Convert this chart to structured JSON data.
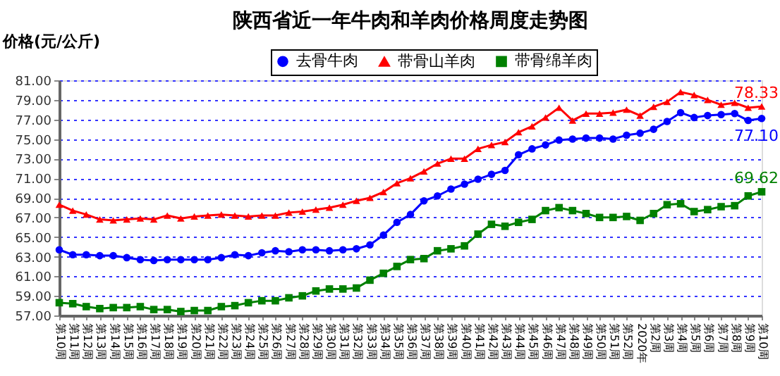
{
  "chart_data": {
    "type": "line",
    "title": "陕西省近一年牛肉和羊肉价格周度走势图",
    "ylabel": "价格(元/公斤)",
    "categories": [
      "第10周",
      "第11周",
      "第12周",
      "第13周",
      "第14周",
      "第15周",
      "第16周",
      "第17周",
      "第18周",
      "第19周",
      "第20周",
      "第21周",
      "第22周",
      "第23周",
      "第24周",
      "第25周",
      "第26周",
      "第27周",
      "第28周",
      "第29周",
      "第30周",
      "第31周",
      "第32周",
      "第33周",
      "第34周",
      "第35周",
      "第36周",
      "第37周",
      "第38周",
      "第39周",
      "第40周",
      "第41周",
      "第42周",
      "第43周",
      "第44周",
      "第45周",
      "第46周",
      "第47周",
      "第48周",
      "第49周",
      "第50周",
      "第51周",
      "第52周",
      "2020年",
      "第2周",
      "第3周",
      "第4周",
      "第5周",
      "第6周",
      "第7周",
      "第8周",
      "第9周",
      "第10周"
    ],
    "series": [
      {
        "name": "去骨牛肉",
        "color": "#0000ff",
        "marker": "circle",
        "values": [
          63.7,
          63.2,
          63.2,
          63.1,
          63.1,
          62.9,
          62.7,
          62.6,
          62.7,
          62.7,
          62.7,
          62.7,
          62.9,
          63.2,
          63.1,
          63.4,
          63.6,
          63.5,
          63.7,
          63.7,
          63.6,
          63.7,
          63.8,
          64.2,
          65.2,
          66.5,
          67.3,
          68.7,
          69.2,
          69.9,
          70.4,
          70.9,
          71.4,
          71.8,
          73.4,
          74.0,
          74.4,
          74.9,
          75.0,
          75.1,
          75.1,
          75.0,
          75.4,
          75.6,
          76.0,
          76.8,
          77.7,
          77.2,
          77.4,
          77.5,
          77.6,
          76.9,
          77.1
        ],
        "value_labels": [
          null,
          null,
          null,
          null,
          null,
          null,
          null,
          null,
          null,
          null,
          null,
          null,
          null,
          null,
          null,
          null,
          null,
          null,
          null,
          null,
          null,
          null,
          null,
          null,
          null,
          null,
          null,
          null,
          null,
          null,
          null,
          null,
          null,
          null,
          null,
          null,
          null,
          null,
          null,
          null,
          null,
          null,
          null,
          null,
          null,
          null,
          null,
          null,
          null,
          null,
          null,
          null,
          "77.10"
        ]
      },
      {
        "name": "带骨山羊肉",
        "color": "#ff0000",
        "marker": "triangle",
        "values": [
          68.3,
          67.7,
          67.3,
          66.8,
          66.7,
          66.8,
          66.9,
          66.8,
          67.2,
          66.9,
          67.1,
          67.2,
          67.3,
          67.2,
          67.1,
          67.2,
          67.2,
          67.5,
          67.6,
          67.8,
          68.0,
          68.3,
          68.7,
          69.0,
          69.6,
          70.5,
          71.0,
          71.7,
          72.5,
          73.0,
          73.0,
          74.0,
          74.4,
          74.7,
          75.7,
          76.3,
          77.2,
          78.2,
          76.9,
          77.6,
          77.6,
          77.7,
          78.0,
          77.4,
          78.3,
          78.8,
          79.8,
          79.5,
          79.0,
          78.5,
          78.7,
          78.2,
          78.33
        ],
        "value_labels": [
          null,
          null,
          null,
          null,
          null,
          null,
          null,
          null,
          null,
          null,
          null,
          null,
          null,
          null,
          null,
          null,
          null,
          null,
          null,
          null,
          null,
          null,
          null,
          null,
          null,
          null,
          null,
          null,
          null,
          null,
          null,
          null,
          null,
          null,
          null,
          null,
          null,
          null,
          null,
          null,
          null,
          null,
          null,
          null,
          null,
          null,
          null,
          null,
          null,
          null,
          null,
          null,
          "78.33"
        ]
      },
      {
        "name": "带骨绵羊肉",
        "color": "#008000",
        "marker": "square",
        "values": [
          58.3,
          58.2,
          57.9,
          57.7,
          57.8,
          57.8,
          57.9,
          57.6,
          57.6,
          57.4,
          57.5,
          57.5,
          57.9,
          58.0,
          58.3,
          58.5,
          58.5,
          58.8,
          59.0,
          59.5,
          59.7,
          59.7,
          59.8,
          60.6,
          61.3,
          62.0,
          62.7,
          62.8,
          63.6,
          63.8,
          64.1,
          65.3,
          66.3,
          66.1,
          66.5,
          66.8,
          67.7,
          68.0,
          67.7,
          67.4,
          67.0,
          67.0,
          67.1,
          66.7,
          67.4,
          68.3,
          68.4,
          67.6,
          67.8,
          68.1,
          68.2,
          69.2,
          69.62
        ],
        "value_labels": [
          null,
          null,
          null,
          null,
          null,
          null,
          null,
          null,
          null,
          null,
          null,
          null,
          null,
          null,
          null,
          null,
          null,
          null,
          null,
          null,
          null,
          null,
          null,
          null,
          null,
          null,
          null,
          null,
          null,
          null,
          null,
          null,
          null,
          null,
          null,
          null,
          null,
          null,
          null,
          null,
          null,
          null,
          null,
          null,
          null,
          null,
          null,
          null,
          null,
          null,
          null,
          null,
          "69.62"
        ]
      }
    ],
    "ylim": [
      57,
      81
    ],
    "yticks": [
      {
        "value": 57,
        "label": "57.00"
      },
      {
        "value": 59,
        "label": "59.00"
      },
      {
        "value": 61,
        "label": "61.00"
      },
      {
        "value": 63,
        "label": "63.00"
      },
      {
        "value": 65,
        "label": "65.00"
      },
      {
        "value": 67,
        "label": "67.00"
      },
      {
        "value": 69,
        "label": "69.00"
      },
      {
        "value": 71,
        "label": "71.00"
      },
      {
        "value": 73,
        "label": "73.00"
      },
      {
        "value": 75,
        "label": "75.00"
      },
      {
        "value": 77,
        "label": "77.00"
      },
      {
        "value": 79,
        "label": "79.00"
      },
      {
        "value": 81,
        "label": "81.00"
      }
    ],
    "grid": "y",
    "legend": "top",
    "line_style": "solid"
  }
}
